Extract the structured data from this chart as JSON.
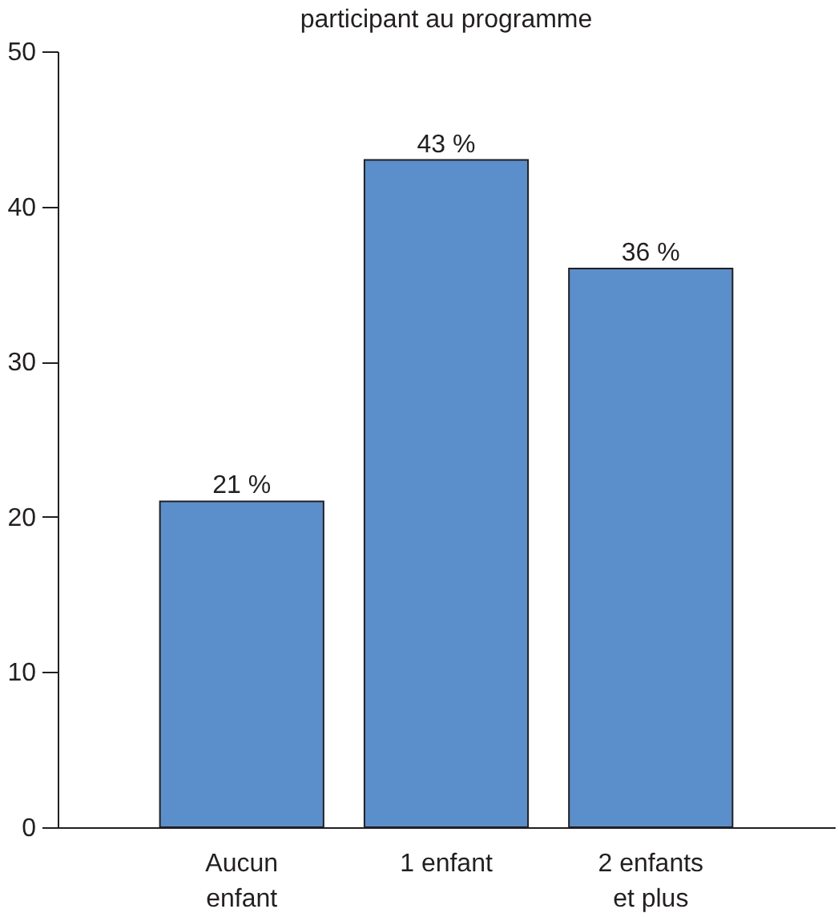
{
  "chart_data": {
    "type": "bar",
    "title": "participant au programme",
    "categories": [
      "Aucun\nenfant",
      "1 enfant",
      "2 enfants\net plus"
    ],
    "values": [
      21,
      43,
      36
    ],
    "value_labels": [
      "21 %",
      "43 %",
      "36 %"
    ],
    "color": "#5b8fcc",
    "ylim": [
      0,
      50
    ],
    "yticks": [
      0,
      10,
      20,
      30,
      40,
      50
    ],
    "grid": false
  }
}
